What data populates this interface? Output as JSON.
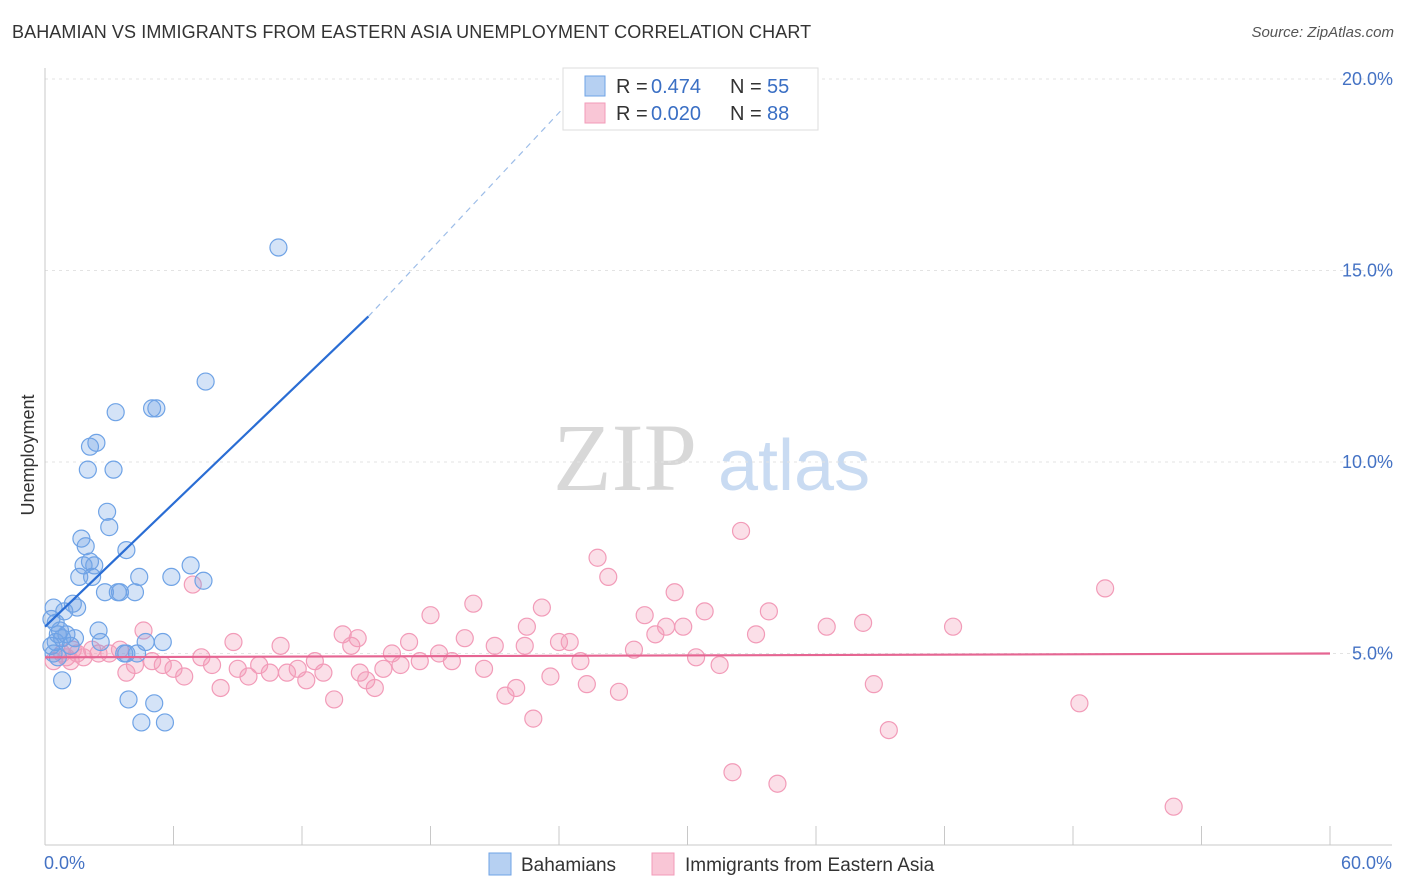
{
  "title": "BAHAMIAN VS IMMIGRANTS FROM EASTERN ASIA UNEMPLOYMENT CORRELATION CHART",
  "source": "Source: ZipAtlas.com",
  "watermark": {
    "zip": "ZIP",
    "atlas": "atlas"
  },
  "colors": {
    "blue": "#6fa3e6",
    "blue_line": "#2a6dd4",
    "pink": "#f29bb8",
    "pink_line": "#e56592",
    "axis_label": "#4472c4"
  },
  "legend": {
    "r_label": "R =",
    "n_label": "N =",
    "series": [
      {
        "r": "0.474",
        "n": "55"
      },
      {
        "r": "0.020",
        "n": "88"
      }
    ]
  },
  "chart_data": {
    "type": "scatter",
    "title": "BAHAMIAN VS IMMIGRANTS FROM EASTERN ASIA UNEMPLOYMENT CORRELATION CHART",
    "xlabel": "",
    "ylabel": "Unemployment",
    "xlim": [
      0,
      60
    ],
    "ylim": [
      0,
      21
    ],
    "x_tick_labels": [
      "0.0%",
      "60.0%"
    ],
    "y_ticks": [
      5,
      10,
      15,
      20
    ],
    "y_tick_labels": [
      "5.0%",
      "10.0%",
      "15.0%",
      "20.0%"
    ],
    "grid": true,
    "series": [
      {
        "name": "Bahamians",
        "trend": {
          "x1": 0,
          "y1": 5.7,
          "x2": 15.1,
          "y2": 13.8,
          "dash_to_x": 24.3,
          "dash_to_y": 19.3
        },
        "points": [
          [
            0.3,
            5.2
          ],
          [
            0.4,
            5.0
          ],
          [
            0.5,
            5.3
          ],
          [
            0.6,
            5.5
          ],
          [
            0.3,
            5.9
          ],
          [
            0.5,
            5.8
          ],
          [
            0.7,
            5.6
          ],
          [
            0.4,
            6.2
          ],
          [
            0.6,
            4.9
          ],
          [
            0.8,
            5.4
          ],
          [
            1.0,
            5.5
          ],
          [
            1.2,
            5.2
          ],
          [
            0.9,
            6.1
          ],
          [
            1.3,
            6.3
          ],
          [
            1.5,
            6.2
          ],
          [
            0.8,
            4.3
          ],
          [
            1.4,
            5.4
          ],
          [
            1.6,
            7.0
          ],
          [
            1.8,
            7.3
          ],
          [
            1.9,
            7.8
          ],
          [
            2.1,
            7.4
          ],
          [
            2.2,
            7.0
          ],
          [
            1.7,
            8.0
          ],
          [
            2.0,
            9.8
          ],
          [
            2.1,
            10.4
          ],
          [
            2.4,
            10.5
          ],
          [
            2.3,
            7.3
          ],
          [
            2.5,
            5.6
          ],
          [
            2.6,
            5.3
          ],
          [
            2.8,
            6.6
          ],
          [
            3.0,
            8.3
          ],
          [
            3.2,
            9.8
          ],
          [
            3.3,
            11.3
          ],
          [
            3.5,
            6.6
          ],
          [
            3.7,
            5.0
          ],
          [
            3.8,
            7.7
          ],
          [
            3.9,
            3.8
          ],
          [
            4.2,
            6.6
          ],
          [
            4.4,
            7.0
          ],
          [
            4.3,
            5.0
          ],
          [
            3.4,
            6.6
          ],
          [
            2.9,
            8.7
          ],
          [
            3.8,
            5.0
          ],
          [
            5.6,
            3.2
          ],
          [
            5.1,
            3.7
          ],
          [
            4.5,
            3.2
          ],
          [
            5.5,
            5.3
          ],
          [
            4.7,
            5.3
          ],
          [
            5.2,
            11.4
          ],
          [
            5.0,
            11.4
          ],
          [
            5.9,
            7.0
          ],
          [
            6.8,
            7.3
          ],
          [
            7.4,
            6.9
          ],
          [
            7.5,
            12.1
          ],
          [
            10.9,
            15.6
          ]
        ]
      },
      {
        "name": "Immigrants from Eastern Asia",
        "trend": {
          "x1": 0,
          "y1": 4.9,
          "x2": 60,
          "y2": 5.0
        },
        "points": [
          [
            0.4,
            4.8
          ],
          [
            0.8,
            5.0
          ],
          [
            1.0,
            4.9
          ],
          [
            1.3,
            5.1
          ],
          [
            1.5,
            5.0
          ],
          [
            1.8,
            4.9
          ],
          [
            2.2,
            5.1
          ],
          [
            2.5,
            5.0
          ],
          [
            3.0,
            5.0
          ],
          [
            3.5,
            5.1
          ],
          [
            3.8,
            4.5
          ],
          [
            4.2,
            4.7
          ],
          [
            4.6,
            5.6
          ],
          [
            5.0,
            4.8
          ],
          [
            5.5,
            4.7
          ],
          [
            6.0,
            4.6
          ],
          [
            6.5,
            4.4
          ],
          [
            6.9,
            6.8
          ],
          [
            7.3,
            4.9
          ],
          [
            7.8,
            4.7
          ],
          [
            8.2,
            4.1
          ],
          [
            8.8,
            5.3
          ],
          [
            9.0,
            4.6
          ],
          [
            9.5,
            4.4
          ],
          [
            10.0,
            4.7
          ],
          [
            10.5,
            4.5
          ],
          [
            11.0,
            5.2
          ],
          [
            11.3,
            4.5
          ],
          [
            11.8,
            4.6
          ],
          [
            12.2,
            4.3
          ],
          [
            12.6,
            4.8
          ],
          [
            13.0,
            4.5
          ],
          [
            13.5,
            3.8
          ],
          [
            13.9,
            5.5
          ],
          [
            14.3,
            5.2
          ],
          [
            14.7,
            4.5
          ],
          [
            15.0,
            4.3
          ],
          [
            15.4,
            4.1
          ],
          [
            15.8,
            4.6
          ],
          [
            16.2,
            5.0
          ],
          [
            16.6,
            4.7
          ],
          [
            17.0,
            5.3
          ],
          [
            17.5,
            4.8
          ],
          [
            18.0,
            6.0
          ],
          [
            18.4,
            5.0
          ],
          [
            19.0,
            4.8
          ],
          [
            19.6,
            5.4
          ],
          [
            20.0,
            6.3
          ],
          [
            20.5,
            4.6
          ],
          [
            21.0,
            5.2
          ],
          [
            21.5,
            3.9
          ],
          [
            22.0,
            4.1
          ],
          [
            22.5,
            5.7
          ],
          [
            22.8,
            3.3
          ],
          [
            23.2,
            6.2
          ],
          [
            23.6,
            4.4
          ],
          [
            24.0,
            5.3
          ],
          [
            24.5,
            5.3
          ],
          [
            25.0,
            4.8
          ],
          [
            25.3,
            4.2
          ],
          [
            25.8,
            7.5
          ],
          [
            26.3,
            7.0
          ],
          [
            26.8,
            4.0
          ],
          [
            27.5,
            5.1
          ],
          [
            28.0,
            6.0
          ],
          [
            28.5,
            5.5
          ],
          [
            29.0,
            5.7
          ],
          [
            29.4,
            6.6
          ],
          [
            29.8,
            5.7
          ],
          [
            30.4,
            4.9
          ],
          [
            30.8,
            6.1
          ],
          [
            31.5,
            4.7
          ],
          [
            32.1,
            1.9
          ],
          [
            32.5,
            8.2
          ],
          [
            33.2,
            5.5
          ],
          [
            33.8,
            6.1
          ],
          [
            34.2,
            1.6
          ],
          [
            36.5,
            5.7
          ],
          [
            38.2,
            5.8
          ],
          [
            38.7,
            4.2
          ],
          [
            39.4,
            3.0
          ],
          [
            42.4,
            5.7
          ],
          [
            48.3,
            3.7
          ],
          [
            49.5,
            6.7
          ],
          [
            52.7,
            1.0
          ],
          [
            14.6,
            5.4
          ],
          [
            22.4,
            5.2
          ],
          [
            1.2,
            4.8
          ]
        ]
      }
    ]
  }
}
